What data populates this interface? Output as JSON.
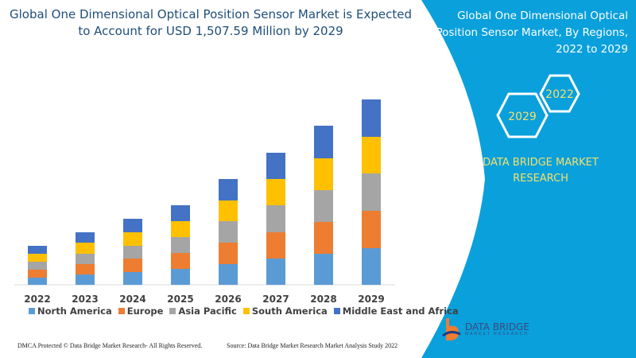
{
  "header": {
    "title": "Global One Dimensional Optical Position Sensor Market is Expected to Account for USD 1,507.59 Million by 2029"
  },
  "side": {
    "title": "Global One Dimensional Optical Position Sensor Market, By Regions, 2022 to 2029",
    "hex_start": "2022",
    "hex_end": "2029",
    "brand": "DATA BRIDGE MARKET RESEARCH",
    "logo_text": "DATA BRIDGE",
    "logo_sub": "MARKET RESEARCH",
    "panel_color": "#0aa0dc"
  },
  "footer": {
    "left": "DMCA Protected © Data Bridge Market Research- All Rights Reserved.",
    "right": "Source: Data Bridge Market Research Market Analysis Study 2022"
  },
  "chart_data": {
    "type": "bar",
    "stacked": true,
    "categories": [
      "2022",
      "2023",
      "2024",
      "2025",
      "2026",
      "2027",
      "2028",
      "2029"
    ],
    "series": [
      {
        "name": "North America",
        "color": "#5b9bd5",
        "values": [
          9,
          13,
          16,
          20,
          26,
          33,
          39,
          46
        ]
      },
      {
        "name": "Europe",
        "color": "#ed7d31",
        "values": [
          10,
          13,
          17,
          20,
          27,
          33,
          40,
          47
        ]
      },
      {
        "name": "Asia Pacific",
        "color": "#a5a5a5",
        "values": [
          10,
          13,
          16,
          20,
          27,
          34,
          40,
          47
        ]
      },
      {
        "name": "South America",
        "color": "#ffc000",
        "values": [
          10,
          14,
          17,
          20,
          26,
          33,
          40,
          46
        ]
      },
      {
        "name": "Middle East and Africa",
        "color": "#4472c4",
        "values": [
          10,
          13,
          17,
          20,
          27,
          33,
          41,
          47
        ]
      }
    ],
    "y_axis_shown": false,
    "grid": false,
    "legend": "bottom"
  }
}
